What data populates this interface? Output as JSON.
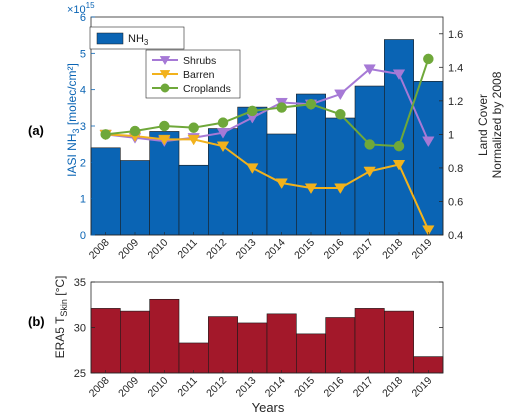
{
  "colors": {
    "nh3_bar": "#0a64b4",
    "tskin_bar": "#a3182a",
    "shrubs": "#a679d6",
    "barren": "#f2b21c",
    "croplands": "#6fa83a",
    "left_axis": "#0a64b4"
  },
  "panels": {
    "a": {
      "tag": "(a)"
    },
    "b": {
      "tag": "(b)"
    }
  },
  "chart_data": [
    {
      "type": "bar",
      "panel": "(a)",
      "categories": [
        "2008",
        "2009",
        "2010",
        "2011",
        "2012",
        "2013",
        "2014",
        "2015",
        "2016",
        "2017",
        "2018",
        "2019"
      ],
      "series": [
        {
          "name": "NH3",
          "values": [
            2.4,
            2.05,
            2.85,
            1.92,
            2.93,
            3.52,
            2.78,
            3.88,
            3.22,
            4.1,
            5.38,
            4.23
          ]
        }
      ],
      "ylabel": "IASI NH3 [molec/cm²]",
      "ylabel_main": "IASI NH",
      "ylabel_sub": "3",
      "ylabel_tail": " [molec/cm²]",
      "y_exponent_base": "×10",
      "y_exponent": "15",
      "ylim": [
        0,
        6
      ],
      "yticks": [
        "0",
        "1",
        "2",
        "3",
        "4",
        "5",
        "6"
      ],
      "legend_placement": "top-left",
      "legend_label_main": "NH",
      "legend_label_sub": "3",
      "right_axis": {
        "ylabel_line1": "Land Cover",
        "ylabel_line2": "Normalized by 2008",
        "ylim": [
          0.4,
          1.7
        ],
        "yticks": [
          "0.4",
          "0.6",
          "0.8",
          "1",
          "1.2",
          "1.4",
          "1.6"
        ],
        "type": "line",
        "series": [
          {
            "name": "Shrubs",
            "marker": "triangle-down",
            "values": [
              1.0,
              0.98,
              0.96,
              0.98,
              1.01,
              1.1,
              1.19,
              1.18,
              1.24,
              1.39,
              1.36,
              0.96
            ]
          },
          {
            "name": "Barren",
            "marker": "triangle-down",
            "values": [
              1.0,
              0.99,
              0.97,
              0.97,
              0.93,
              0.8,
              0.71,
              0.68,
              0.68,
              0.78,
              0.82,
              0.43
            ]
          },
          {
            "name": "Croplands",
            "marker": "circle",
            "values": [
              1.0,
              1.02,
              1.05,
              1.04,
              1.07,
              1.14,
              1.16,
              1.18,
              1.12,
              0.94,
              0.93,
              1.45
            ]
          }
        ],
        "legend_placement": "top-left"
      }
    },
    {
      "type": "bar",
      "panel": "(b)",
      "categories": [
        "2008",
        "2009",
        "2010",
        "2011",
        "2012",
        "2013",
        "2014",
        "2015",
        "2016",
        "2017",
        "2018",
        "2019"
      ],
      "series": [
        {
          "name": "ERA5 TSkin",
          "values": [
            32.1,
            31.8,
            33.1,
            28.3,
            31.2,
            30.5,
            31.5,
            29.3,
            31.1,
            32.1,
            31.8,
            26.8
          ]
        }
      ],
      "ylabel_main": "ERA5 T",
      "ylabel_sub": "Skin",
      "ylabel_tail": " [°C]",
      "ylim": [
        25,
        35
      ],
      "yticks": [
        "25",
        "30",
        "35"
      ],
      "xlabel": "Years"
    }
  ]
}
